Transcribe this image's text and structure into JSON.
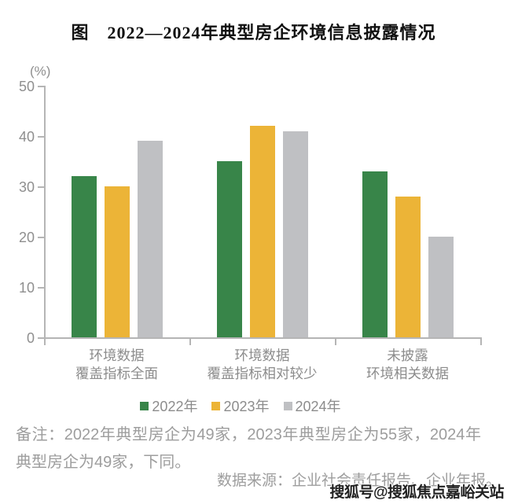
{
  "title": "图　2022—2024年典型房企环境信息披露情况",
  "chart_data": {
    "type": "bar",
    "title": "图　2022—2024年典型房企环境信息披露情况",
    "unit_label": "(%)",
    "ylim": [
      0,
      50
    ],
    "yticks": [
      0,
      10,
      20,
      30,
      40,
      50
    ],
    "grid": false,
    "legend_position": "bottom",
    "categories": [
      {
        "line1": "环境数据",
        "line2": "覆盖指标全面"
      },
      {
        "line1": "环境数据",
        "line2": "覆盖指标相对较少"
      },
      {
        "line1": "未披露",
        "line2": "环境相关数据"
      }
    ],
    "series": [
      {
        "name": "2022年",
        "color": "#388549",
        "values": [
          32,
          35,
          33
        ]
      },
      {
        "name": "2023年",
        "color": "#ecb437",
        "values": [
          30,
          42,
          28
        ]
      },
      {
        "name": "2024年",
        "color": "#bfc0c3",
        "values": [
          39,
          41,
          20
        ]
      }
    ]
  },
  "notes": {
    "remark": "备注：2022年典型房企为49家，2023年典型房企为55家，2024年典型房企为49家，下同。",
    "source": "数据来源：企业社会责任报告、企业年报。"
  },
  "watermark": "搜狐号@搜狐焦点嘉峪关站",
  "colors": {
    "axis": "#b5b5b5",
    "tick_label": "#8f8f8f",
    "category_label": "#8c8c8c",
    "note_text": "#9d9d9d",
    "title_text": "#111111"
  }
}
